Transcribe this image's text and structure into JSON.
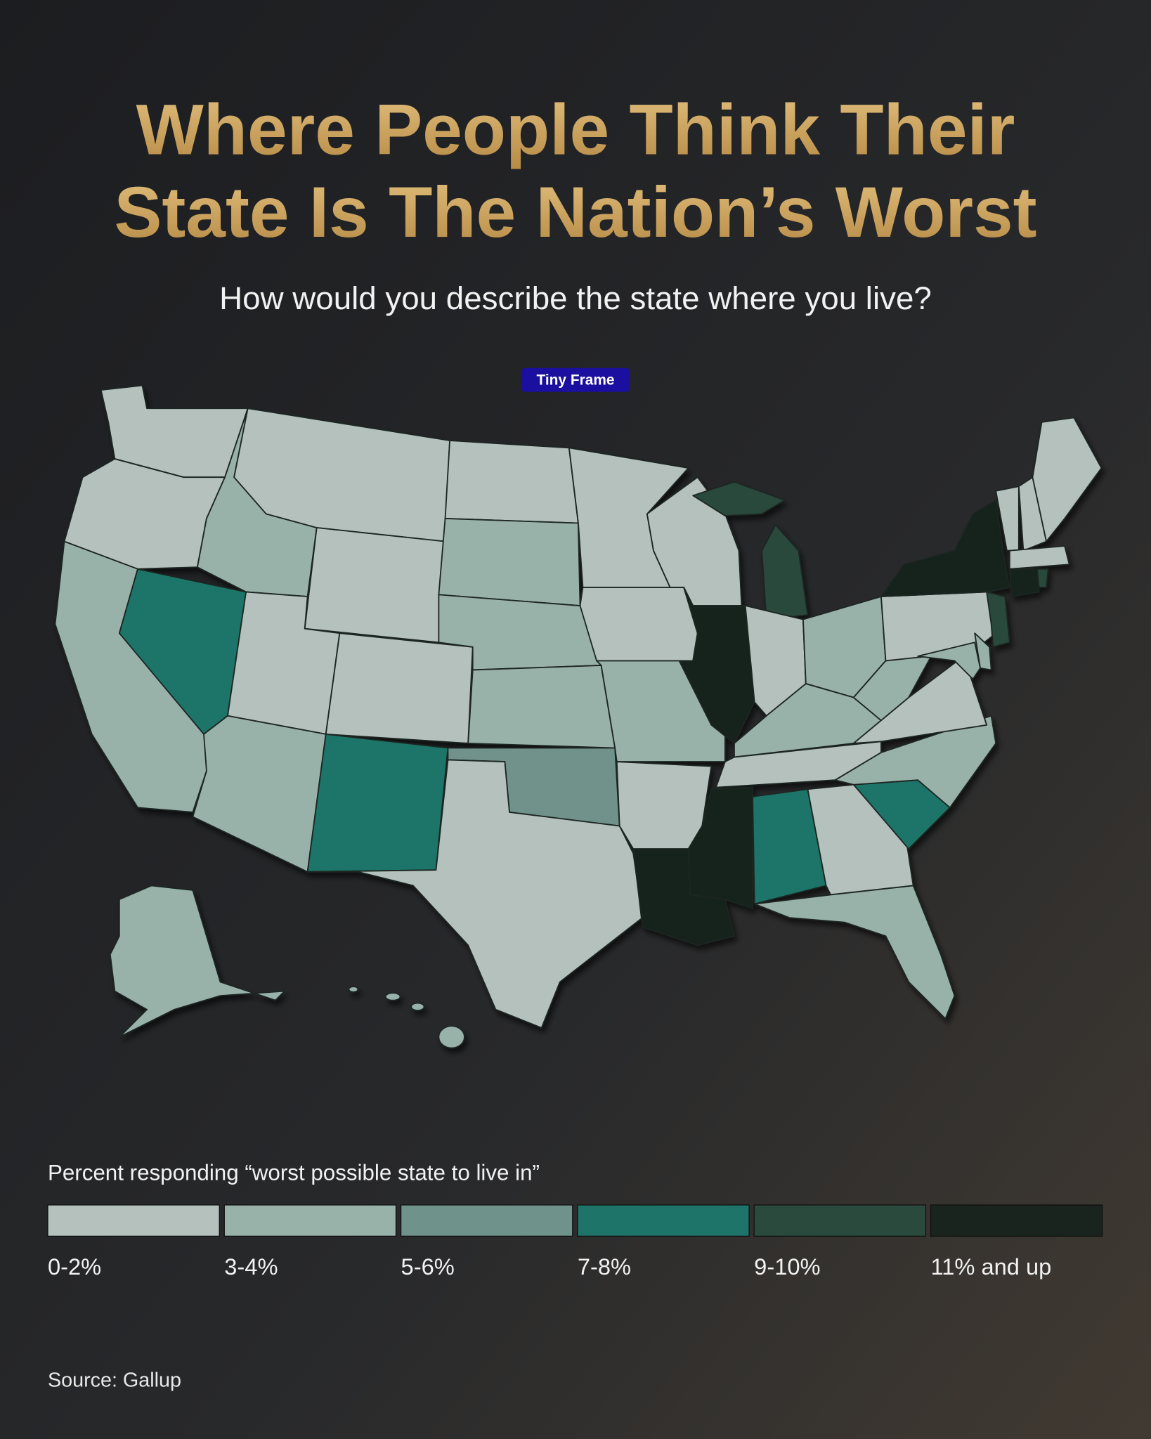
{
  "title_lines": [
    "Where People Think Their",
    "State Is The Nation’s Worst"
  ],
  "subtitle": "How would you describe the state where you live?",
  "badge": "Tiny Frame",
  "legend": {
    "title": "Percent responding “worst possible state to live in”",
    "items": [
      {
        "label": "0-2%",
        "color": "#b4c1bc"
      },
      {
        "label": "3-4%",
        "color": "#98b2aa"
      },
      {
        "label": "5-6%",
        "color": "#6f928a"
      },
      {
        "label": "7-8%",
        "color": "#1e7468"
      },
      {
        "label": "9-10%",
        "color": "#2b4a3e"
      },
      {
        "label": "11% and up",
        "color": "#18241d"
      }
    ]
  },
  "source": "Source: Gallup"
}
